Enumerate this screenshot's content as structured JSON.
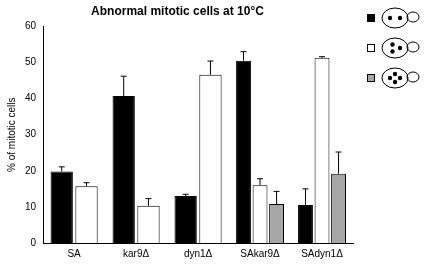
{
  "chart_data": {
    "type": "bar",
    "title": "Abnormal mitotic cells at 10°C",
    "y_label": "% of mitotic cells",
    "categories": [
      "SA",
      "kar9Δ",
      "dyn1Δ",
      "SAkar9Δ",
      "SAdyn1Δ"
    ],
    "series": [
      {
        "color": "#000000",
        "values": [
          19.8,
          40.7,
          13.0,
          50.5,
          10.5
        ],
        "errors": [
          1.3,
          5.5,
          0.5,
          2.5,
          4.5
        ]
      },
      {
        "color": "#ffffff",
        "values": [
          15.7,
          10.3,
          46.6,
          16.0,
          51.3
        ],
        "errors": [
          1.0,
          2.0,
          3.8,
          1.8,
          0.3
        ]
      },
      {
        "color": "#a6a6a6",
        "values": [
          null,
          null,
          null,
          10.8,
          19.2
        ],
        "errors": [
          null,
          null,
          null,
          3.5,
          6.0
        ]
      }
    ],
    "ylim": [
      0,
      60
    ],
    "yticks": [
      0,
      10,
      20,
      30,
      40,
      50,
      60
    ],
    "grid": false
  }
}
